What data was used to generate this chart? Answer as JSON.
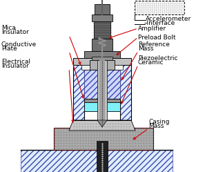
{
  "bg_color": "#ffffff",
  "labels": {
    "accelerometer": "Accelerometer",
    "interface": "–Interface",
    "amplifier": "Amplifier",
    "preload_bolt": "Preload Bolt",
    "reference_mass": "Reference\nMass",
    "piezoelectric": "Piezoelectric\nCeramic",
    "mica_insulator": "Mica\nInsulator",
    "conductive_plate": "Conductive\nPlate",
    "electrical_insulator": "Electrical\nInsulator",
    "casing_mass": "Casing\nMass"
  },
  "colors": {
    "white": "#ffffff",
    "black": "#000000",
    "red_arrow": "#cc0000",
    "gray_light": "#d0d0d0",
    "gray_med": "#a8a8a8",
    "gray_dark": "#787878",
    "gray_darker": "#505050",
    "gray_casing": "#b0b0b0",
    "cyan": "#80f0f8",
    "hatch_face": "#e8eeff",
    "stipple_face": "#b8b8b8"
  }
}
